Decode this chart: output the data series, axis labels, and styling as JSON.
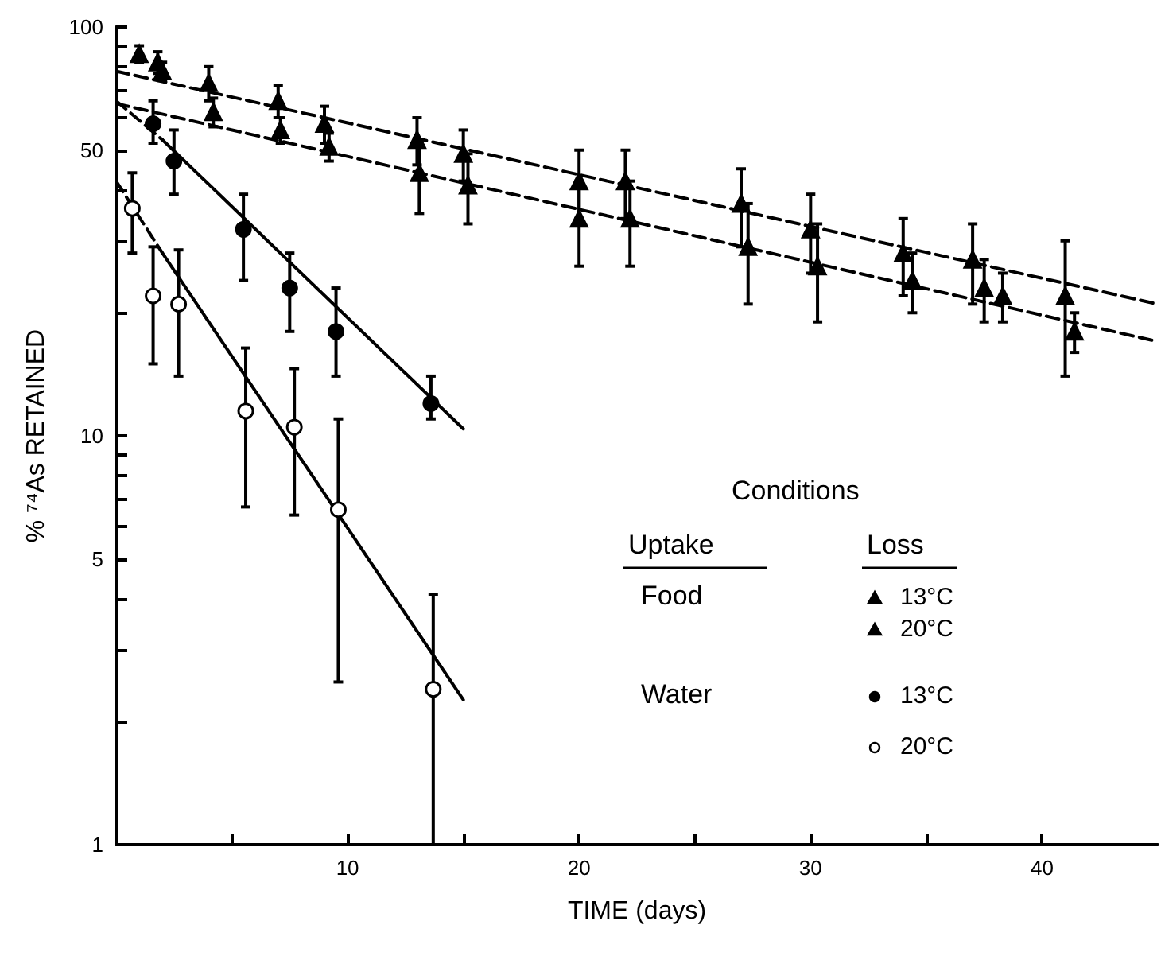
{
  "chart_data": {
    "type": "scatter",
    "xlabel": "TIME (days)",
    "ylabel": "% ⁷⁴As RETAINED",
    "xlim": [
      0,
      45
    ],
    "xticks": [
      {
        "value": 5,
        "label": null
      },
      10,
      {
        "value": 15,
        "label": null
      },
      20,
      {
        "value": 25,
        "label": null
      },
      30,
      {
        "value": 35,
        "label": null
      },
      40
    ],
    "ylim": [
      1,
      100
    ],
    "yticks": [
      1,
      {
        "value": 2,
        "label": null
      },
      {
        "value": 3,
        "label": null
      },
      {
        "value": 4,
        "label": null
      },
      5,
      {
        "value": 6,
        "label": null
      },
      {
        "value": 7,
        "label": null
      },
      {
        "value": 8,
        "label": null
      },
      {
        "value": 9,
        "label": null
      },
      10,
      {
        "value": 20,
        "label": null
      },
      {
        "value": 30,
        "label": null
      },
      {
        "value": 40,
        "label": null
      },
      50,
      {
        "value": 60,
        "label": null
      },
      {
        "value": 70,
        "label": null
      },
      {
        "value": 80,
        "label": null
      },
      {
        "value": 90,
        "label": null
      },
      100
    ],
    "log": "y",
    "grid": false,
    "legend": "right",
    "legend_title": "Conditions",
    "annotations": [
      "Uptake",
      "Loss",
      "Food",
      "Water"
    ],
    "series": [
      {
        "name": "13°C",
        "marker": "triangle",
        "color": "#000000",
        "x": [
          1,
          1.8,
          4,
          7,
          9,
          13,
          15,
          20,
          22,
          27,
          30,
          34,
          37,
          41
        ],
        "values": [
          86,
          82,
          73,
          66,
          58,
          53,
          49,
          42,
          42,
          37,
          32,
          28,
          27,
          22
        ],
        "errors": [
          4,
          5,
          7,
          6,
          6,
          7,
          7,
          8,
          8,
          8,
          7,
          6,
          6,
          8
        ]
      },
      {
        "name": "20°C",
        "marker": "triangle",
        "color": "#000000",
        "x": [
          2,
          4.2,
          7.1,
          9.2,
          13.1,
          15.2,
          20,
          22.2,
          27.3,
          30.3,
          34.4,
          37.5,
          38.3,
          41.4
        ],
        "values": [
          78,
          62,
          56,
          51,
          44,
          41,
          34,
          34,
          29,
          26,
          24,
          23,
          22,
          18
        ],
        "errors": [
          4,
          5,
          4,
          4,
          9,
          8,
          8,
          8,
          8,
          7,
          4,
          4,
          3,
          2
        ]
      },
      {
        "name": "13°C",
        "marker": "circle",
        "color": "#000000",
        "x": [
          1.6,
          2.5,
          5.5,
          7.5,
          9.5,
          13.6
        ],
        "values": [
          58,
          47,
          32,
          23,
          18,
          12
        ],
        "errors": [
          [
            52,
            66
          ],
          [
            39,
            56
          ],
          [
            24,
            39
          ],
          [
            18,
            28
          ],
          [
            14,
            23
          ],
          [
            11,
            14
          ]
        ]
      },
      {
        "name": "20°C",
        "marker": "circle",
        "color": "#ffffff",
        "x": [
          0.7,
          1.6,
          2.7,
          5.6,
          7.7,
          9.6,
          13.7
        ],
        "values": [
          36,
          22,
          21,
          11.5,
          10.5,
          6.6,
          2.4
        ],
        "errors": [
          [
            28,
            44
          ],
          [
            15,
            29
          ],
          [
            14,
            28.5
          ],
          [
            6.7,
            16.4
          ],
          [
            6.4,
            14.6
          ],
          [
            2.5,
            11
          ],
          [
            1,
            4.1
          ]
        ]
      },
      {
        "type": "line",
        "color": "#000000",
        "line_style": "dashed",
        "marker": "none",
        "x": [
          0,
          45
        ],
        "values": [
          78,
          21
        ]
      },
      {
        "type": "line",
        "color": "#000000",
        "line_style": "dashed",
        "marker": "none",
        "x": [
          0,
          45
        ],
        "values": [
          65,
          17
        ]
      },
      {
        "type": "line",
        "color": "#000000",
        "line_style": "dashed",
        "marker": "none",
        "x": [
          0,
          2
        ],
        "values": [
          66,
          53
        ]
      },
      {
        "type": "line",
        "color": "#000000",
        "line_style": "solid",
        "marker": "none",
        "x": [
          2,
          15
        ],
        "values": [
          53,
          10.4
        ]
      },
      {
        "type": "line",
        "color": "#000000",
        "line_style": "dashed",
        "marker": "none",
        "x": [
          0,
          2
        ],
        "values": [
          42,
          28
        ]
      },
      {
        "type": "line",
        "color": "#000000",
        "line_style": "solid",
        "marker": "none",
        "x": [
          2,
          15
        ],
        "values": [
          28,
          2.26
        ]
      }
    ]
  }
}
